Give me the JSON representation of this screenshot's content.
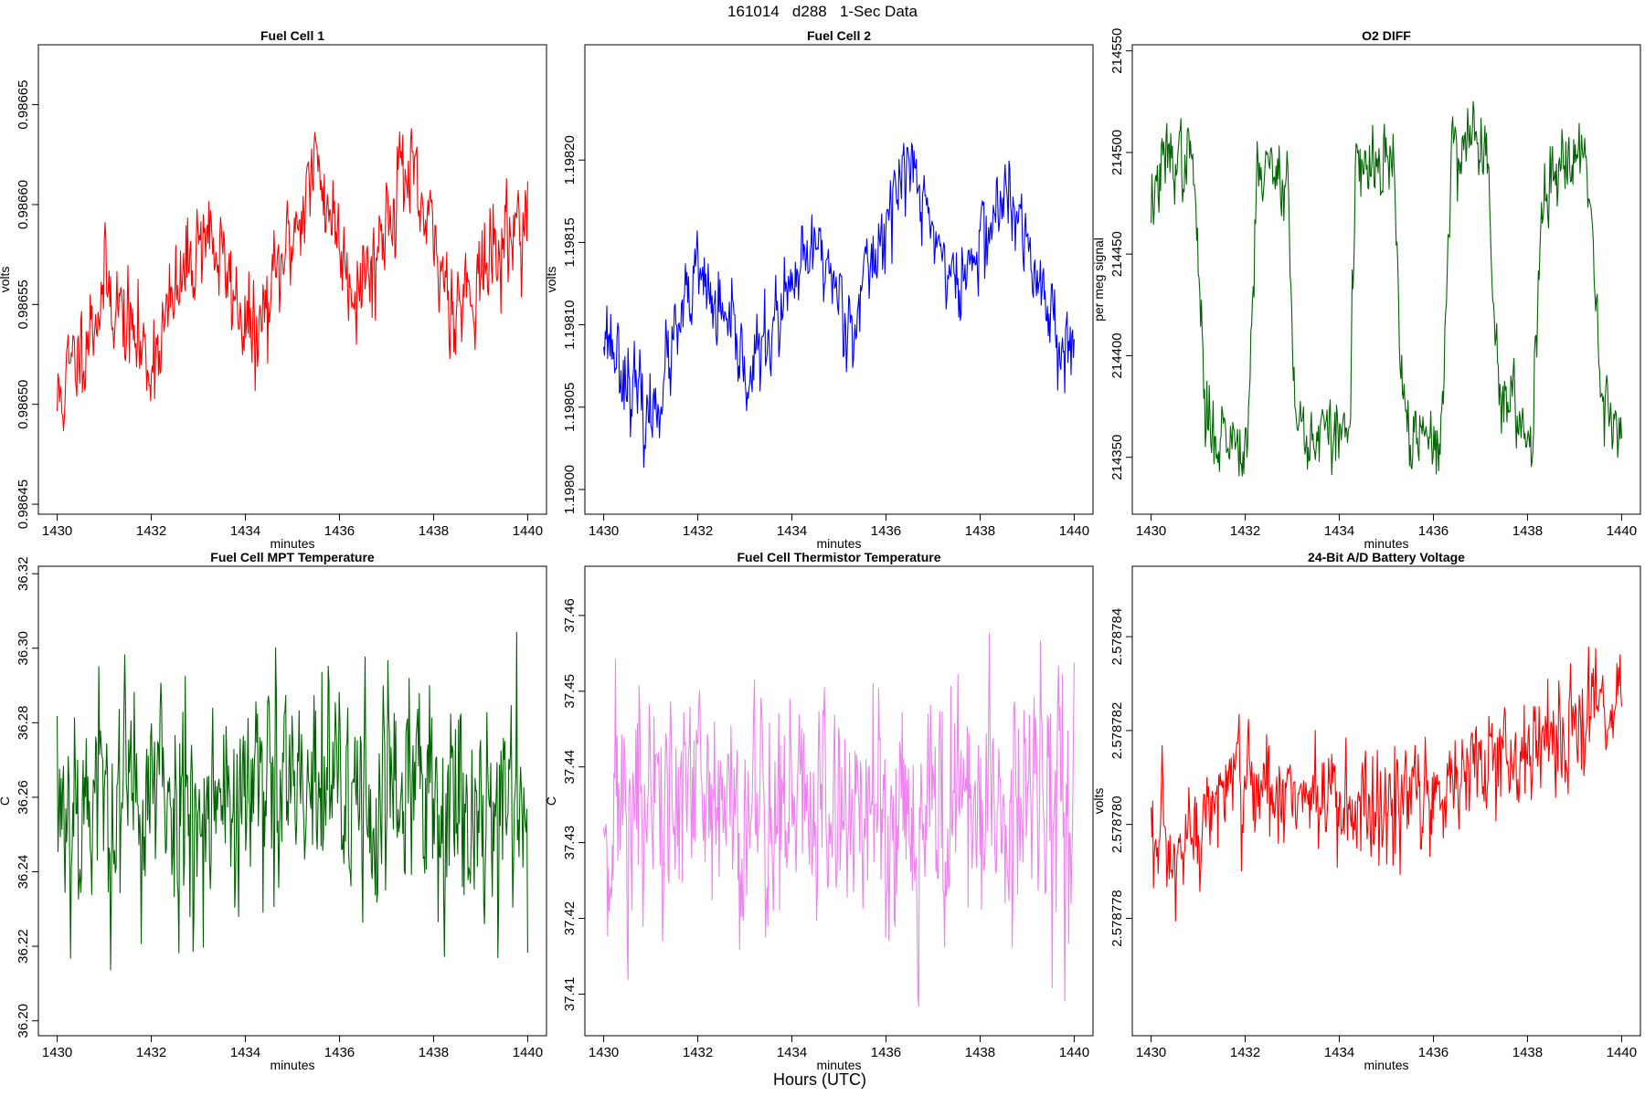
{
  "figure_title": "161014   d288   1-Sec Data",
  "footer_label": "Hours (UTC)",
  "chart_data": [
    {
      "type": "line",
      "title": "Fuel Cell 1",
      "xlabel": "minutes",
      "ylabel": "volts",
      "xlim": [
        1429.6,
        1440.4
      ],
      "ylim": [
        0.986445,
        0.98668
      ],
      "xticks": [
        1430,
        1432,
        1434,
        1436,
        1438,
        1440
      ],
      "yticks": [
        0.98645,
        0.9865,
        0.98655,
        0.9866,
        0.98665
      ],
      "ytick_labels": [
        "0.98645",
        "0.98650",
        "0.98655",
        "0.98660",
        "0.98665"
      ],
      "xtick_labels": [
        "1430",
        "1432",
        "1434",
        "1436",
        "1438",
        "1440"
      ],
      "color": "#ff0000",
      "series": [
        {
          "name": "Fuel Cell 1",
          "shape": {
            "steps": [
              [
                1430.0,
                0.9865
              ],
              [
                1431.05,
                0.98656
              ],
              [
                1431.95,
                0.98652
              ],
              [
                1433.15,
                0.98659
              ],
              [
                1434.2,
                0.98653
              ],
              [
                1435.5,
                0.98662
              ],
              [
                1436.3,
                0.98656
              ],
              [
                1436.7,
                0.98657
              ],
              [
                1437.35,
                0.98662
              ],
              [
                1438.45,
                0.98655
              ],
              [
                1439.5,
                0.98658
              ],
              [
                1440.0,
                0.9866
              ]
            ],
            "noise": 2.2e-05,
            "points": 600,
            "seed": 11
          }
        }
      ]
    },
    {
      "type": "line",
      "title": "Fuel Cell 2",
      "xlabel": "minutes",
      "ylabel": "volts",
      "xlim": [
        1429.6,
        1440.4
      ],
      "ylim": [
        1.197985,
        1.19827
      ],
      "xticks": [
        1430,
        1432,
        1434,
        1436,
        1438,
        1440
      ],
      "yticks": [
        1.198,
        1.19805,
        1.1981,
        1.19815,
        1.1982
      ],
      "ytick_labels": [
        "1.19800",
        "1.19805",
        "1.19810",
        "1.19815",
        "1.19820"
      ],
      "xtick_labels": [
        "1430",
        "1432",
        "1434",
        "1436",
        "1438",
        "1440"
      ],
      "color": "#0000ff",
      "series": [
        {
          "name": "Fuel Cell 2",
          "shape": {
            "steps": [
              [
                1430.0,
                1.1981
              ],
              [
                1430.95,
                1.19804
              ],
              [
                1432.0,
                1.19813
              ],
              [
                1433.1,
                1.19807
              ],
              [
                1434.55,
                1.19815
              ],
              [
                1435.25,
                1.1981
              ],
              [
                1436.45,
                1.1982
              ],
              [
                1437.5,
                1.19812
              ],
              [
                1438.55,
                1.19818
              ],
              [
                1439.6,
                1.1981
              ],
              [
                1440.0,
                1.19808
              ]
            ],
            "noise": 2.2e-05,
            "points": 600,
            "seed": 23
          }
        }
      ]
    },
    {
      "type": "line",
      "title": "O2 DIFF",
      "xlabel": "minutes",
      "ylabel": "per meg signal",
      "xlim": [
        1429.6,
        1440.4
      ],
      "ylim": [
        214322,
        214553
      ],
      "xticks": [
        1430,
        1432,
        1434,
        1436,
        1438,
        1440
      ],
      "yticks": [
        214350,
        214400,
        214450,
        214500,
        214550
      ],
      "ytick_labels": [
        "214350",
        "214400",
        "214450",
        "214500",
        "214550"
      ],
      "xtick_labels": [
        "1430",
        "1432",
        "1434",
        "1436",
        "1438",
        "1440"
      ],
      "color": "#006400",
      "series": [
        {
          "name": "O2 DIFF",
          "shape": {
            "steps": [
              [
                1430.0,
                214475
              ],
              [
                1430.35,
                214498
              ],
              [
                1430.9,
                214495
              ],
              [
                1431.15,
                214370
              ],
              [
                1431.35,
                214362
              ],
              [
                1432.05,
                214358
              ],
              [
                1432.25,
                214492
              ],
              [
                1432.9,
                214490
              ],
              [
                1433.05,
                214372
              ],
              [
                1433.3,
                214360
              ],
              [
                1434.2,
                214362
              ],
              [
                1434.35,
                214488
              ],
              [
                1435.15,
                214495
              ],
              [
                1435.35,
                214372
              ],
              [
                1435.6,
                214358
              ],
              [
                1436.15,
                214358
              ],
              [
                1436.4,
                214500
              ],
              [
                1436.85,
                214510
              ],
              [
                1437.15,
                214498
              ],
              [
                1437.4,
                214380
              ],
              [
                1438.1,
                214360
              ],
              [
                1438.3,
                214478
              ],
              [
                1438.9,
                214505
              ],
              [
                1439.3,
                214495
              ],
              [
                1439.55,
                214385
              ],
              [
                1440.0,
                214362
              ]
            ],
            "noise": 16,
            "points": 600,
            "seed": 37
          }
        }
      ]
    },
    {
      "type": "line",
      "title": "Fuel Cell MPT Temperature",
      "xlabel": "minutes",
      "ylabel": "C",
      "xlim": [
        1429.6,
        1440.4
      ],
      "ylim": [
        36.196,
        36.322
      ],
      "xticks": [
        1430,
        1432,
        1434,
        1436,
        1438,
        1440
      ],
      "yticks": [
        36.2,
        36.22,
        36.24,
        36.26,
        36.28,
        36.3,
        36.32
      ],
      "ytick_labels": [
        "36.20",
        "36.22",
        "36.24",
        "36.26",
        "36.28",
        "36.30",
        "36.32"
      ],
      "xtick_labels": [
        "1430",
        "1432",
        "1434",
        "1436",
        "1438",
        "1440"
      ],
      "color": "#006400",
      "series": [
        {
          "name": "Fuel Cell MPT Temperature",
          "shape": {
            "steps": [
              [
                1430.0,
                36.26
              ],
              [
                1440.0,
                36.26
              ]
            ],
            "noise": 0.028,
            "points": 600,
            "seed": 53
          }
        }
      ]
    },
    {
      "type": "line",
      "title": "Fuel Cell Thermistor Temperature",
      "xlabel": "minutes",
      "ylabel": "C",
      "xlim": [
        1429.6,
        1440.4
      ],
      "ylim": [
        37.4045,
        37.4665
      ],
      "xticks": [
        1430,
        1432,
        1434,
        1436,
        1438,
        1440
      ],
      "yticks": [
        37.41,
        37.42,
        37.43,
        37.44,
        37.45,
        37.46
      ],
      "ytick_labels": [
        "37.41",
        "37.42",
        "37.43",
        "37.44",
        "37.45",
        "37.46"
      ],
      "xtick_labels": [
        "1430",
        "1432",
        "1434",
        "1436",
        "1438",
        "1440"
      ],
      "color": "#ee82ee",
      "series": [
        {
          "name": "Fuel Cell Thermistor Temperature",
          "shape": {
            "steps": [
              [
                1430.0,
                37.4345
              ],
              [
                1440.0,
                37.4345
              ]
            ],
            "noise": 0.0145,
            "points": 600,
            "seed": 71
          }
        }
      ]
    },
    {
      "type": "line",
      "title": "24-Bit A/D Battery Voltage",
      "xlabel": "minutes",
      "ylabel": "volts",
      "xlim": [
        1429.6,
        1440.4
      ],
      "ylim": [
        2.5787755,
        2.5787855
      ],
      "xticks": [
        1430,
        1432,
        1434,
        1436,
        1438,
        1440
      ],
      "yticks": [
        2.578778,
        2.57878,
        2.578782,
        2.578784
      ],
      "ytick_labels": [
        "2.578778",
        "2.578780",
        "2.578782",
        "2.578784"
      ],
      "xtick_labels": [
        "1430",
        "1432",
        "1434",
        "1436",
        "1438",
        "1440"
      ],
      "color": "#ff0000",
      "series": [
        {
          "name": "24-Bit A/D Battery Voltage",
          "shape": {
            "steps": [
              [
                1430.0,
                2.5787795
              ],
              [
                1430.6,
                2.578779
              ],
              [
                1431.5,
                2.5787808
              ],
              [
                1433.0,
                2.5787808
              ],
              [
                1434.5,
                2.57878
              ],
              [
                1436.0,
                2.5787808
              ],
              [
                1437.5,
                2.5787814
              ],
              [
                1438.3,
                2.5787818
              ],
              [
                1440.0,
                2.5787828
              ]
            ],
            "noise": 1.1e-06,
            "points": 600,
            "seed": 97
          }
        }
      ]
    }
  ]
}
